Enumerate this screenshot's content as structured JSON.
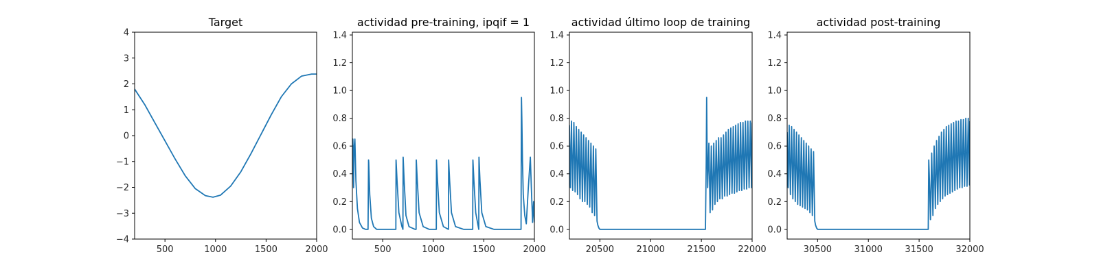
{
  "chart_data": [
    {
      "type": "line",
      "title": "Target",
      "xlim": [
        200,
        2000
      ],
      "ylim": [
        -4,
        4
      ],
      "xticks": [
        500,
        1000,
        1500,
        2000
      ],
      "yticks": [
        -4,
        -3,
        -2,
        -1,
        0,
        1,
        2,
        3,
        4
      ],
      "color": "#1f77b4",
      "series": [
        {
          "x": [
            200,
            300,
            400,
            500,
            600,
            700,
            800,
            900,
            975,
            1050,
            1150,
            1250,
            1350,
            1450,
            1550,
            1650,
            1750,
            1850,
            1950,
            2000
          ],
          "y": [
            1.8,
            1.2,
            0.5,
            -0.2,
            -0.9,
            -1.55,
            -2.05,
            -2.32,
            -2.38,
            -2.3,
            -1.95,
            -1.4,
            -0.7,
            0.05,
            0.8,
            1.5,
            2.0,
            2.3,
            2.38,
            2.38
          ]
        }
      ]
    },
    {
      "type": "line",
      "title": "actividad pre-training, ipqif = 1",
      "xlim": [
        200,
        2000
      ],
      "ylim": [
        -0.07,
        1.42
      ],
      "xticks": [
        500,
        1000,
        1500,
        2000
      ],
      "yticks": [
        0.0,
        0.2,
        0.4,
        0.6,
        0.8,
        1.0,
        1.2,
        1.4
      ],
      "color": "#1f77b4",
      "series": [
        {
          "x": [
            200,
            205,
            212,
            218,
            225,
            235,
            250,
            270,
            300,
            330,
            355,
            360,
            362,
            372,
            388,
            410,
            440,
            480,
            540,
            600,
            630,
            632,
            642,
            660,
            690,
            700,
            702,
            712,
            730,
            760,
            820,
            830,
            832,
            842,
            860,
            900,
            960,
            1020,
            1030,
            1032,
            1042,
            1060,
            1100,
            1150,
            1152,
            1162,
            1180,
            1220,
            1300,
            1380,
            1390,
            1392,
            1402,
            1420,
            1440,
            1450,
            1452,
            1462,
            1480,
            1520,
            1600,
            1700,
            1800,
            1860,
            1868,
            1870,
            1872,
            1876,
            1882,
            1890,
            1905,
            1920,
            1940,
            1960,
            1970,
            1980,
            1982,
            1992,
            2000
          ],
          "y": [
            0.4,
            0.65,
            0.3,
            0.6,
            0.65,
            0.35,
            0.15,
            0.05,
            0.01,
            0.0,
            0.0,
            0.5,
            0.48,
            0.25,
            0.08,
            0.02,
            0.0,
            0.0,
            0.0,
            0.0,
            0.0,
            0.5,
            0.35,
            0.12,
            0.02,
            0.0,
            0.52,
            0.35,
            0.1,
            0.02,
            0.0,
            0.0,
            0.5,
            0.35,
            0.12,
            0.02,
            0.0,
            0.0,
            0.0,
            0.5,
            0.35,
            0.12,
            0.02,
            0.0,
            0.5,
            0.35,
            0.12,
            0.02,
            0.0,
            0.0,
            0.0,
            0.5,
            0.35,
            0.12,
            0.04,
            0.0,
            0.52,
            0.35,
            0.12,
            0.02,
            0.0,
            0.0,
            0.0,
            0.0,
            0.0,
            0.5,
            0.95,
            0.8,
            0.5,
            0.25,
            0.1,
            0.04,
            0.3,
            0.52,
            0.3,
            0.1,
            0.05,
            0.2,
            0.05
          ]
        }
      ]
    },
    {
      "type": "line",
      "title": "actividad último loop de training",
      "xlim": [
        20200,
        22000
      ],
      "ylim": [
        -0.07,
        1.42
      ],
      "xticks": [
        20500,
        21000,
        21500,
        22000
      ],
      "yticks": [
        0.0,
        0.2,
        0.4,
        0.6,
        0.8,
        1.0,
        1.2,
        1.4
      ],
      "color": "#1f77b4",
      "series": [
        {
          "x": [
            20200,
            20210,
            20220,
            20232,
            20244,
            20256,
            20268,
            20280,
            20292,
            20304,
            20316,
            20328,
            20340,
            20352,
            20364,
            20376,
            20388,
            20400,
            20412,
            20424,
            20436,
            20448,
            20460,
            20472,
            20480,
            20490,
            20500,
            20520,
            20550,
            20600,
            20800,
            21000,
            21200,
            21400,
            21540,
            21548,
            21552,
            21556,
            21562,
            21574,
            21586,
            21598,
            21610,
            21622,
            21634,
            21646,
            21658,
            21670,
            21682,
            21694,
            21706,
            21718,
            21730,
            21742,
            21754,
            21766,
            21778,
            21790,
            21802,
            21814,
            21826,
            21838,
            21850,
            21862,
            21874,
            21886,
            21898,
            21910,
            21922,
            21934,
            21946,
            21958,
            21970,
            21982,
            21994,
            22000
          ],
          "y": [
            0.75,
            0.3,
            0.78,
            0.28,
            0.77,
            0.27,
            0.74,
            0.25,
            0.72,
            0.22,
            0.7,
            0.2,
            0.68,
            0.2,
            0.66,
            0.18,
            0.64,
            0.16,
            0.62,
            0.12,
            0.6,
            0.1,
            0.58,
            0.06,
            0.03,
            0.01,
            0.0,
            0.0,
            0.0,
            0.0,
            0.0,
            0.0,
            0.0,
            0.0,
            0.0,
            0.5,
            0.95,
            0.6,
            0.3,
            0.62,
            0.12,
            0.6,
            0.14,
            0.62,
            0.18,
            0.64,
            0.2,
            0.66,
            0.22,
            0.66,
            0.22,
            0.68,
            0.24,
            0.7,
            0.24,
            0.72,
            0.25,
            0.73,
            0.26,
            0.74,
            0.26,
            0.75,
            0.27,
            0.76,
            0.28,
            0.77,
            0.28,
            0.77,
            0.29,
            0.78,
            0.29,
            0.78,
            0.3,
            0.78,
            0.3,
            0.77
          ]
        }
      ]
    },
    {
      "type": "line",
      "title": "actividad post-training",
      "xlim": [
        30200,
        32000
      ],
      "ylim": [
        -0.07,
        1.42
      ],
      "xticks": [
        30500,
        31000,
        31500,
        32000
      ],
      "yticks": [
        0.0,
        0.2,
        0.4,
        0.6,
        0.8,
        1.0,
        1.2,
        1.4
      ],
      "color": "#1f77b4",
      "series": [
        {
          "x": [
            30200,
            30210,
            30220,
            30232,
            30244,
            30256,
            30268,
            30280,
            30292,
            30304,
            30316,
            30328,
            30340,
            30352,
            30364,
            30376,
            30388,
            30400,
            30412,
            30424,
            30436,
            30448,
            30460,
            30472,
            30480,
            30490,
            30500,
            30520,
            30550,
            30600,
            30800,
            31000,
            31200,
            31400,
            31590,
            31595,
            31600,
            31612,
            31624,
            31636,
            31648,
            31660,
            31672,
            31684,
            31696,
            31708,
            31720,
            31732,
            31744,
            31756,
            31768,
            31780,
            31792,
            31804,
            31816,
            31828,
            31840,
            31852,
            31864,
            31876,
            31888,
            31900,
            31912,
            31924,
            31936,
            31948,
            31960,
            31972,
            31984,
            31996,
            32000
          ],
          "y": [
            0.7,
            0.3,
            0.75,
            0.25,
            0.74,
            0.22,
            0.72,
            0.2,
            0.7,
            0.18,
            0.68,
            0.17,
            0.66,
            0.16,
            0.64,
            0.15,
            0.62,
            0.14,
            0.6,
            0.12,
            0.58,
            0.1,
            0.56,
            0.06,
            0.03,
            0.01,
            0.0,
            0.0,
            0.0,
            0.0,
            0.0,
            0.0,
            0.0,
            0.0,
            0.0,
            0.5,
            0.4,
            0.07,
            0.55,
            0.1,
            0.6,
            0.15,
            0.64,
            0.18,
            0.67,
            0.2,
            0.7,
            0.22,
            0.72,
            0.24,
            0.74,
            0.25,
            0.75,
            0.26,
            0.76,
            0.27,
            0.77,
            0.28,
            0.78,
            0.29,
            0.78,
            0.3,
            0.79,
            0.3,
            0.79,
            0.31,
            0.8,
            0.31,
            0.8,
            0.32,
            0.78
          ]
        }
      ]
    }
  ]
}
